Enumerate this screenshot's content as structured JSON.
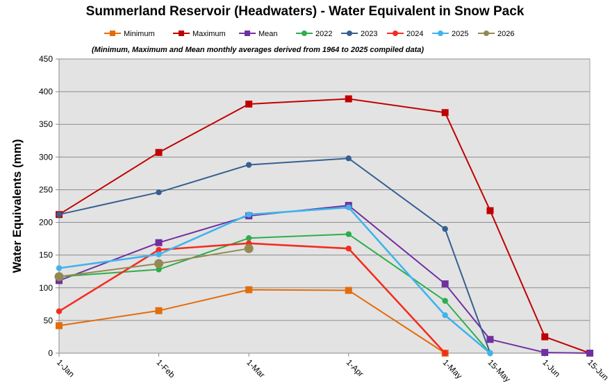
{
  "chart_data": {
    "type": "line",
    "title": "Summerland Reservoir (Headwaters) - Water Equivalent in Snow Pack",
    "note": "(Minimum, Maximum and Mean monthly averages derived from 1964 to 2025 compiled data)",
    "xlabel": "",
    "ylabel": "Water Equivalents (mm)",
    "ylim": [
      0,
      450
    ],
    "ytick_step": 50,
    "yticks": [
      "0",
      "50",
      "100",
      "150",
      "200",
      "250",
      "300",
      "350",
      "400",
      "450"
    ],
    "grid": true,
    "legend_position": "top",
    "categories": [
      "1-Jan",
      "1-Feb",
      "1-Mar",
      "1-Apr",
      "1-May",
      "15-May",
      "1-Jun",
      "15-Jun"
    ],
    "x_days": [
      0,
      31,
      59,
      90,
      120,
      134,
      151,
      165
    ],
    "series": [
      {
        "name": "Minimum",
        "color": "#E36C0A",
        "marker": "square",
        "values": [
          42,
          65,
          97,
          96,
          0,
          null,
          null,
          null
        ]
      },
      {
        "name": "Maximum",
        "color": "#C00000",
        "marker": "square",
        "values": [
          212,
          307,
          381,
          389,
          368,
          218,
          25,
          0
        ]
      },
      {
        "name": "Mean",
        "color": "#7030A0",
        "marker": "square",
        "values": [
          111,
          169,
          210,
          226,
          106,
          21,
          1,
          0
        ]
      },
      {
        "name": "2022",
        "color": "#2EAD4B",
        "marker": "circle",
        "values": [
          117,
          128,
          176,
          182,
          80,
          0,
          null,
          null
        ]
      },
      {
        "name": "2023",
        "color": "#365F91",
        "marker": "circle",
        "values": [
          212,
          246,
          288,
          298,
          190,
          0,
          null,
          null
        ]
      },
      {
        "name": "2024",
        "color": "#F42C20",
        "marker": "circle",
        "values": [
          64,
          158,
          168,
          160,
          0,
          null,
          null,
          null
        ]
      },
      {
        "name": "2025",
        "color": "#3FB4EC",
        "marker": "circle",
        "values": [
          130,
          151,
          212,
          223,
          58,
          0,
          null,
          null
        ]
      },
      {
        "name": "2026",
        "color": "#938953",
        "marker": "circle",
        "values": [
          117,
          137,
          160,
          null,
          null,
          null,
          null,
          null
        ]
      }
    ]
  }
}
